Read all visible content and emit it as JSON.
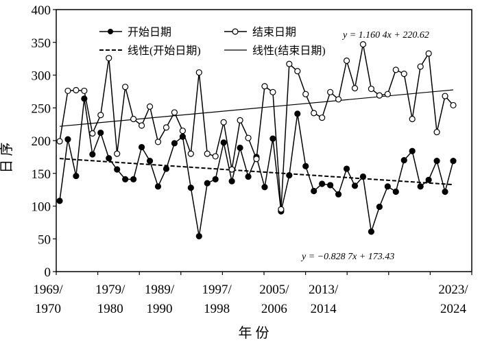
{
  "chart_data": {
    "type": "line",
    "title": "",
    "xlabel": "年 份",
    "ylabel": "日 序",
    "ylim": [
      0,
      400
    ],
    "yticks": [
      0,
      50,
      100,
      150,
      200,
      250,
      300,
      350,
      400
    ],
    "x_tick_labels": [
      {
        "index": 1,
        "line1": "1969/",
        "line2": "1970"
      },
      {
        "index": 8,
        "line1": "1979/",
        "line2": "1980"
      },
      {
        "index": 14,
        "line1": "1989/",
        "line2": "1990"
      },
      {
        "index": 21,
        "line1": "1997/",
        "line2": "1998"
      },
      {
        "index": 28,
        "line1": "2005/",
        "line2": "2006"
      },
      {
        "index": 34,
        "line1": "2013/",
        "line2": "2014"
      },
      {
        "index": 49,
        "line1": "2023/",
        "line2": "2024"
      }
    ],
    "grid": false,
    "legend": {
      "placement": "top",
      "entries": [
        "开始日期",
        "结束日期",
        "线性(开始日期)",
        "线性(结束日期)"
      ]
    },
    "series": [
      {
        "name": "开始日期",
        "marker": "filled-circle",
        "values": [
          108,
          202,
          146,
          264,
          179,
          212,
          173,
          156,
          141,
          141,
          190,
          169,
          130,
          157,
          196,
          206,
          128,
          54,
          135,
          141,
          197,
          138,
          189,
          145,
          175,
          129,
          203,
          92,
          147,
          241,
          161,
          123,
          134,
          132,
          118,
          157,
          131,
          145,
          61,
          99,
          130,
          122,
          170,
          184,
          130,
          140,
          169,
          122,
          169
        ]
      },
      {
        "name": "结束日期",
        "marker": "open-circle",
        "values": [
          199,
          276,
          277,
          276,
          211,
          239,
          326,
          180,
          282,
          233,
          223,
          252,
          198,
          220,
          243,
          215,
          180,
          304,
          180,
          176,
          228,
          156,
          231,
          204,
          172,
          283,
          274,
          95,
          317,
          306,
          271,
          242,
          235,
          274,
          263,
          322,
          280,
          347,
          279,
          269,
          271,
          308,
          302,
          233,
          313,
          333,
          213,
          268,
          254
        ]
      }
    ],
    "trendlines": [
      {
        "name": "线性(开始日期)",
        "slope": -0.8287,
        "intercept": 173.43,
        "style": "dashed",
        "equation": "y = −0.828 7x + 173.43"
      },
      {
        "name": "线性(结束日期)",
        "slope": 1.1604,
        "intercept": 220.62,
        "style": "solid",
        "equation": "y = 1.160 4x + 220.62"
      }
    ]
  }
}
